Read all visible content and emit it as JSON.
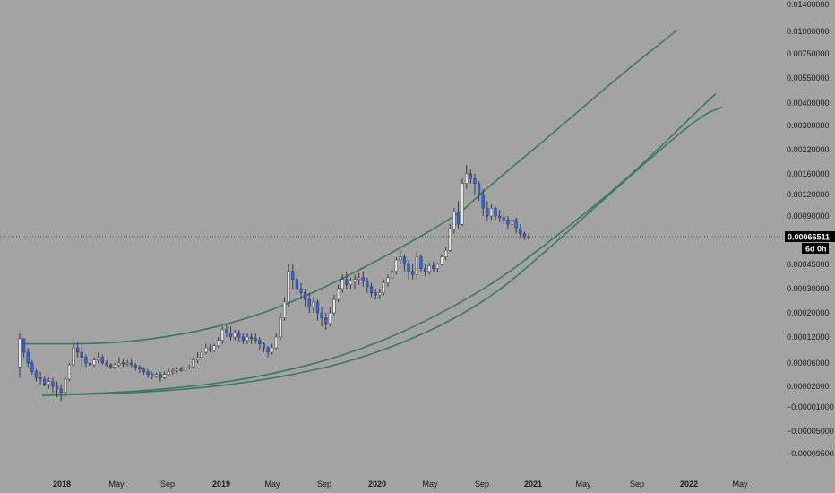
{
  "chart_data": {
    "type": "candlestick",
    "title": "",
    "xlabel": "",
    "ylabel": "",
    "y_scale": "log",
    "grid": false,
    "x_tick_labels": [
      "2018",
      "May",
      "Sep",
      "2019",
      "May",
      "Sep",
      "2020",
      "May",
      "Sep",
      "2021",
      "May",
      "Sep",
      "2022",
      "May"
    ],
    "y_tick_labels": [
      "0.01400000",
      "0.01000000",
      "0.00750000",
      "0.00550000",
      "0.00400000",
      "0.00300000",
      "0.00220000",
      "0.00160000",
      "0.00120000",
      "0.00090000",
      "0.00045000",
      "0.00030000",
      "0.00020000",
      "0.00012000",
      "0.00006000",
      "0.00002000",
      "−0.00001000",
      "−0.00005000",
      "−0.00009500"
    ],
    "current_price": "0.00066511",
    "countdown": "6d 0h",
    "candles": [
      [
        5e-05,
        0.00013,
        0.000115,
        3e-05
      ],
      [
        0.000115,
        0.00011,
        8e-05,
        7e-05
      ],
      [
        8e-05,
        9e-05,
        6e-05,
        5e-05
      ],
      [
        6e-05,
        6.5e-05,
        4e-05,
        3.5e-05
      ],
      [
        4e-05,
        4.5e-05,
        3e-05,
        2.5e-05
      ],
      [
        3e-05,
        4e-05,
        2.8e-05,
        2.2e-05
      ],
      [
        2.8e-05,
        3.2e-05,
        2.2e-05,
        2e-05
      ],
      [
        2.2e-05,
        3e-05,
        2.5e-05,
        1.8e-05
      ],
      [
        2.5e-05,
        3e-05,
        2e-05,
        1.5e-05
      ],
      [
        2e-05,
        2.5e-05,
        1.8e-05,
        1.2e-05
      ],
      [
        1.8e-05,
        2.2e-05,
        1.5e-05,
        1e-05
      ],
      [
        1.5e-05,
        3e-05,
        2.8e-05,
        1.2e-05
      ],
      [
        2.8e-05,
        6e-05,
        5.5e-05,
        2.5e-05
      ],
      [
        5.5e-05,
        0.0001,
        9e-05,
        5e-05
      ],
      [
        9e-05,
        0.000105,
        8e-05,
        7e-05
      ],
      [
        8e-05,
        0.0001,
        7e-05,
        5e-05
      ],
      [
        7e-05,
        7.5e-05,
        6e-05,
        5e-05
      ],
      [
        6e-05,
        7e-05,
        5.5e-05,
        5e-05
      ],
      [
        5.5e-05,
        7e-05,
        6.5e-05,
        5e-05
      ],
      [
        6.5e-05,
        8e-05,
        7e-05,
        6e-05
      ],
      [
        7e-05,
        7.5e-05,
        6e-05,
        5.5e-05
      ],
      [
        6e-05,
        6.5e-05,
        5.5e-05,
        5e-05
      ],
      [
        5.5e-05,
        6e-05,
        5e-05,
        4.5e-05
      ],
      [
        5e-05,
        6e-05,
        5.5e-05,
        4.5e-05
      ],
      [
        5.5e-05,
        7e-05,
        6e-05,
        5e-05
      ],
      [
        6e-05,
        6.8e-05,
        5.8e-05,
        5e-05
      ],
      [
        5.8e-05,
        6.5e-05,
        6e-05,
        5.2e-05
      ],
      [
        6e-05,
        6.8e-05,
        5.5e-05,
        5e-05
      ],
      [
        5.5e-05,
        6e-05,
        5e-05,
        4.2e-05
      ],
      [
        5e-05,
        5.5e-05,
        4.5e-05,
        3.8e-05
      ],
      [
        4.5e-05,
        5e-05,
        4e-05,
        3.5e-05
      ],
      [
        4e-05,
        4.5e-05,
        3.5e-05,
        3e-05
      ],
      [
        3.5e-05,
        4e-05,
        3.2e-05,
        2.8e-05
      ],
      [
        3.2e-05,
        3.8e-05,
        3.5e-05,
        3e-05
      ],
      [
        3.5e-05,
        4e-05,
        3e-05,
        2.5e-05
      ],
      [
        3e-05,
        4e-05,
        3.5e-05,
        2.8e-05
      ],
      [
        3.5e-05,
        4.5e-05,
        4e-05,
        3.2e-05
      ],
      [
        4e-05,
        4.8e-05,
        4.2e-05,
        3.5e-05
      ],
      [
        4.2e-05,
        5e-05,
        4.5e-05,
        3.8e-05
      ],
      [
        4.5e-05,
        5e-05,
        4.2e-05,
        4e-05
      ],
      [
        4.2e-05,
        5e-05,
        4.8e-05,
        4e-05
      ],
      [
        4.8e-05,
        5.5e-05,
        5e-05,
        4.5e-05
      ],
      [
        5e-05,
        7e-05,
        6.5e-05,
        4.8e-05
      ],
      [
        6.5e-05,
        8e-05,
        7e-05,
        6e-05
      ],
      [
        7e-05,
        9e-05,
        8e-05,
        6.5e-05
      ],
      [
        8e-05,
        0.0001,
        9e-05,
        7.5e-05
      ],
      [
        9e-05,
        0.0001,
        8.5e-05,
        8e-05
      ],
      [
        8.5e-05,
        0.0001,
        9.5e-05,
        8e-05
      ],
      [
        9.5e-05,
        0.00012,
        0.00011,
        9e-05
      ],
      [
        0.00011,
        0.00015,
        0.00014,
        0.0001
      ],
      [
        0.00014,
        0.00016,
        0.00013,
        0.00012
      ],
      [
        0.00013,
        0.00015,
        0.00012,
        0.00011
      ],
      [
        0.00012,
        0.00014,
        0.00013,
        0.00011
      ],
      [
        0.00013,
        0.00014,
        0.00012,
        0.000105
      ],
      [
        0.00012,
        0.00013,
        0.00011,
        0.0001
      ],
      [
        0.00011,
        0.00013,
        0.00012,
        0.0001
      ],
      [
        0.00012,
        0.00013,
        0.000115,
        0.0001
      ],
      [
        0.000115,
        0.00013,
        0.00011,
        0.0001
      ],
      [
        0.00011,
        0.00012,
        0.0001,
        8.5e-05
      ],
      [
        0.0001,
        0.000105,
        9e-05,
        8e-05
      ],
      [
        9e-05,
        9.5e-05,
        8e-05,
        7e-05
      ],
      [
        8e-05,
        0.0001,
        9e-05,
        7.5e-05
      ],
      [
        9e-05,
        0.00013,
        0.00012,
        8.5e-05
      ],
      [
        0.00012,
        0.0002,
        0.00018,
        0.00011
      ],
      [
        0.00018,
        0.00026,
        0.00024,
        0.00017
      ],
      [
        0.00024,
        0.00045,
        0.0004,
        0.00022
      ],
      [
        0.0004,
        0.00045,
        0.00035,
        0.0003
      ],
      [
        0.00035,
        0.0004,
        0.0003,
        0.00027
      ],
      [
        0.0003,
        0.00033,
        0.00028,
        0.00025
      ],
      [
        0.00028,
        0.0003,
        0.00025,
        0.00022
      ],
      [
        0.00025,
        0.00028,
        0.00022,
        0.0002
      ],
      [
        0.00022,
        0.00026,
        0.00024,
        0.0002
      ],
      [
        0.00024,
        0.00025,
        0.0002,
        0.00017
      ],
      [
        0.0002,
        0.00022,
        0.00018,
        0.00015
      ],
      [
        0.00018,
        0.0002,
        0.00016,
        0.00014
      ],
      [
        0.00016,
        0.00022,
        0.0002,
        0.00015
      ],
      [
        0.0002,
        0.00027,
        0.00025,
        0.00019
      ],
      [
        0.00025,
        0.00032,
        0.0003,
        0.00024
      ],
      [
        0.0003,
        0.00038,
        0.00035,
        0.00028
      ],
      [
        0.00035,
        0.0004,
        0.00032,
        0.0003
      ],
      [
        0.00032,
        0.00036,
        0.00034,
        0.0003
      ],
      [
        0.00034,
        0.00038,
        0.00035,
        0.0003
      ],
      [
        0.00035,
        0.00039,
        0.00036,
        0.00032
      ],
      [
        0.00036,
        0.0004,
        0.00034,
        0.00031
      ],
      [
        0.00034,
        0.00036,
        0.00031,
        0.00028
      ],
      [
        0.00031,
        0.00033,
        0.00028,
        0.00026
      ],
      [
        0.00028,
        0.0003,
        0.00027,
        0.00025
      ],
      [
        0.00027,
        0.0003,
        0.00028,
        0.00025
      ],
      [
        0.00028,
        0.00035,
        0.00033,
        0.00027
      ],
      [
        0.00033,
        0.00038,
        0.00036,
        0.00031
      ],
      [
        0.00036,
        0.00043,
        0.0004,
        0.00034
      ],
      [
        0.0004,
        0.0005,
        0.00048,
        0.00038
      ],
      [
        0.00048,
        0.00055,
        0.0005,
        0.00045
      ],
      [
        0.0005,
        0.00052,
        0.00045,
        0.0004
      ],
      [
        0.00045,
        0.00048,
        0.0004,
        0.00035
      ],
      [
        0.0004,
        0.00045,
        0.00038,
        0.00035
      ],
      [
        0.00038,
        0.00055,
        0.0005,
        0.00036
      ],
      [
        0.0005,
        0.00052,
        0.00042,
        0.0004
      ],
      [
        0.00042,
        0.00045,
        0.0004,
        0.00037
      ],
      [
        0.0004,
        0.00046,
        0.00044,
        0.00038
      ],
      [
        0.00044,
        0.00047,
        0.00042,
        0.0004
      ],
      [
        0.00042,
        0.00046,
        0.00045,
        0.0004
      ],
      [
        0.00045,
        0.00052,
        0.0005,
        0.00044
      ],
      [
        0.0005,
        0.00058,
        0.00055,
        0.00048
      ],
      [
        0.00055,
        0.0008,
        0.00075,
        0.00054
      ],
      [
        0.00075,
        0.001,
        0.00095,
        0.0007
      ],
      [
        0.00095,
        0.0011,
        0.0008,
        0.00075
      ],
      [
        0.0008,
        0.0015,
        0.0014,
        0.00078
      ],
      [
        0.0014,
        0.0018,
        0.0016,
        0.0013
      ],
      [
        0.0016,
        0.0017,
        0.0015,
        0.0014
      ],
      [
        0.0015,
        0.0016,
        0.0014,
        0.0012
      ],
      [
        0.0014,
        0.00145,
        0.0012,
        0.0011
      ],
      [
        0.0012,
        0.0013,
        0.001,
        0.0009
      ],
      [
        0.001,
        0.0011,
        0.0009,
        0.00085
      ],
      [
        0.0009,
        0.00105,
        0.001,
        0.00085
      ],
      [
        0.001,
        0.00102,
        0.0009,
        0.00085
      ],
      [
        0.0009,
        0.00098,
        0.00088,
        0.00082
      ],
      [
        0.00088,
        0.00095,
        0.00085,
        0.0008
      ],
      [
        0.00085,
        0.0009,
        0.0008,
        0.00075
      ],
      [
        0.0008,
        0.00092,
        0.00085,
        0.00075
      ],
      [
        0.00085,
        0.00088,
        0.00075,
        0.0007
      ],
      [
        0.00075,
        0.0008,
        0.0007,
        0.00066
      ],
      [
        0.0007,
        0.00072,
        0.00067,
        0.00064
      ],
      [
        0.00067,
        0.0007,
        0.000665,
        0.00064
      ]
    ],
    "trend_curves": [
      {
        "points": [
          [
            0.0001,
            0
          ],
          [
            0.0001,
            0.15
          ],
          [
            0.00016,
            0.3
          ],
          [
            0.00032,
            0.43
          ],
          [
            0.0009,
            0.6
          ],
          [
            0.0012,
            0.63
          ],
          [
            0.0025,
            0.72
          ],
          [
            0.006,
            0.83
          ],
          [
            0.0101,
            0.9
          ]
        ]
      },
      {
        "points": [
          [
            1.3e-05,
            0
          ],
          [
            1.6e-05,
            0.15
          ],
          [
            3e-05,
            0.3
          ],
          [
            9e-05,
            0.45
          ],
          [
            0.00028,
            0.6
          ],
          [
            0.00066,
            0.7
          ],
          [
            0.0015,
            0.8
          ],
          [
            0.0038,
            0.9
          ],
          [
            0.0045,
            0.92
          ]
        ]
      },
      {
        "points": [
          [
            1.3e-05,
            0
          ],
          [
            1.5e-05,
            0.15
          ],
          [
            2.5e-05,
            0.3
          ],
          [
            7e-05,
            0.45
          ],
          [
            0.00022,
            0.6
          ],
          [
            0.00066,
            0.71
          ],
          [
            0.0015,
            0.8
          ],
          [
            0.0034,
            0.9
          ],
          [
            0.0038,
            0.93
          ]
        ]
      }
    ]
  },
  "colors": {
    "background": "#a3a3a3",
    "bull_body": "#e6e6e6",
    "bear_body": "#2962ff",
    "wick": "#3a3a3a",
    "trend_line": "#3b7a5e",
    "price_tag_bg": "#000000",
    "crosshair": "#555555"
  }
}
